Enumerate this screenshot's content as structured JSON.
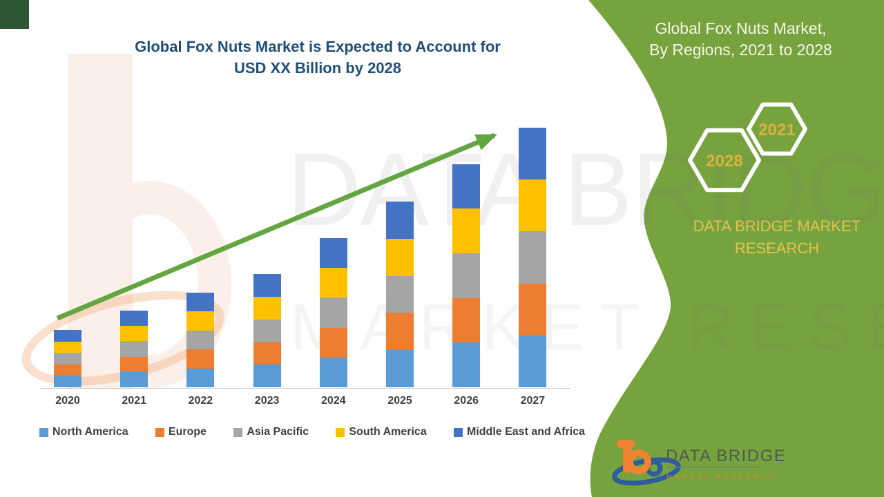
{
  "header": {
    "main_title_line1": "Global Fox Nuts Market is Expected to Account for",
    "main_title_line2": "USD XX Billion by 2028",
    "title_color": "#1F4E79"
  },
  "sidebar": {
    "background_color": "#77A33F",
    "title_line1": "Global Fox Nuts Market,",
    "title_line2": "By Regions, 2021 to 2028",
    "hexagons": {
      "back_year": "2028",
      "front_year": "2021",
      "year_color": "#D9B23B",
      "stroke_color": "#FFFFFF"
    },
    "brand_line1": "DATA BRIDGE MARKET",
    "brand_line2": "RESEARCH",
    "brand_color": "#E3C14F"
  },
  "watermark": {
    "line1": "DATA BRIDGE",
    "line2": "MARKET RESEARCH"
  },
  "footer_logo": {
    "name": "DATA BRIDGE",
    "tagline": "MARKET RESEARCH"
  },
  "chart_data": {
    "type": "bar",
    "stacked": true,
    "title": "Global Fox Nuts Market is Expected to Account for USD XX Billion by 2028",
    "categories": [
      "2020",
      "2021",
      "2022",
      "2023",
      "2024",
      "2025",
      "2026",
      "2027"
    ],
    "series": [
      {
        "name": "North America",
        "color": "#5B9BD5",
        "values": [
          4.4,
          5.9,
          7.3,
          8.7,
          11.5,
          14.3,
          17.2,
          20.0
        ]
      },
      {
        "name": "Europe",
        "color": "#ED7D31",
        "values": [
          4.4,
          5.9,
          7.3,
          8.7,
          11.5,
          14.3,
          17.2,
          20.0
        ]
      },
      {
        "name": "Asia Pacific",
        "color": "#A5A5A5",
        "values": [
          4.4,
          5.9,
          7.3,
          8.7,
          11.5,
          14.3,
          17.2,
          20.0
        ]
      },
      {
        "name": "South America",
        "color": "#FFC000",
        "values": [
          4.4,
          5.9,
          7.3,
          8.7,
          11.5,
          14.3,
          17.2,
          20.0
        ]
      },
      {
        "name": "Middle East and Africa",
        "color": "#4472C4",
        "values": [
          4.4,
          5.9,
          7.3,
          8.7,
          11.5,
          14.3,
          17.2,
          20.0
        ]
      }
    ],
    "values_are_estimates": true,
    "value_axis_visible": false,
    "gridlines": false,
    "legend_position": "bottom",
    "trend_arrow_color": "#63A640"
  }
}
